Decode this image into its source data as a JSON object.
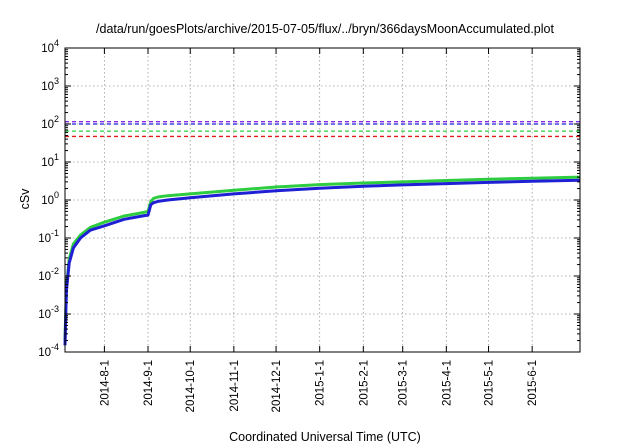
{
  "chart_data": {
    "type": "line",
    "title": "/data/run/goesPlots/archive/2015-07-05/flux/../bryn/366daysMoonAccumulated.plot",
    "xlabel": "Coordinated Universal Time (UTC)",
    "ylabel": "cSv",
    "y_scale": "log",
    "ylim": [
      0.0001,
      10000
    ],
    "xlim": [
      "2014-07-04",
      "2015-07-05"
    ],
    "grid": true,
    "legend": "none",
    "x_tick_labels": [
      "2014-8-1",
      "2014-9-1",
      "2014-10-1",
      "2014-11-1",
      "2014-12-1",
      "2015-1-1",
      "2015-2-1",
      "2015-3-1",
      "2015-4-1",
      "2015-5-1",
      "2015-6-1"
    ],
    "y_tick_labels": [
      {
        "base": "10",
        "exp": "-4"
      },
      {
        "base": "10",
        "exp": "-3"
      },
      {
        "base": "10",
        "exp": "-2"
      },
      {
        "base": "10",
        "exp": "-1"
      },
      {
        "base": "10",
        "exp": "0"
      },
      {
        "base": "10",
        "exp": "1"
      },
      {
        "base": "10",
        "exp": "2"
      },
      {
        "base": "10",
        "exp": "3"
      },
      {
        "base": "10",
        "exp": "4"
      }
    ],
    "thresholds": [
      {
        "value": 115,
        "color": "#8a2be2",
        "style": "dashed"
      },
      {
        "value": 100,
        "color": "#1f1fd6",
        "style": "dashed"
      },
      {
        "value": 65,
        "color": "#2ecc40",
        "style": "dashed"
      },
      {
        "value": 47,
        "color": "#e01b1b",
        "style": "dashed"
      }
    ],
    "series": [
      {
        "color": "#2ecc40",
        "x": [
          "2014-07-04",
          "2014-07-05",
          "2014-07-07",
          "2014-07-10",
          "2014-07-15",
          "2014-07-22",
          "2014-08-01",
          "2014-08-15",
          "2014-08-30",
          "2014-09-01",
          "2014-09-03",
          "2014-09-05",
          "2014-09-08",
          "2014-09-15",
          "2014-10-01",
          "2014-11-01",
          "2014-12-01",
          "2015-01-01",
          "2015-02-01",
          "2015-03-01",
          "2015-04-01",
          "2015-05-01",
          "2015-06-01",
          "2015-07-05"
        ],
        "y": [
          0.0002,
          0.005,
          0.028,
          0.07,
          0.12,
          0.19,
          0.26,
          0.38,
          0.48,
          0.5,
          0.9,
          1.1,
          1.2,
          1.3,
          1.45,
          1.8,
          2.2,
          2.55,
          2.8,
          3.0,
          3.25,
          3.5,
          3.75,
          4.0
        ]
      },
      {
        "color": "#1f1fd6",
        "x": [
          "2014-07-04",
          "2014-07-05",
          "2014-07-07",
          "2014-07-10",
          "2014-07-15",
          "2014-07-22",
          "2014-08-01",
          "2014-08-15",
          "2014-08-30",
          "2014-09-01",
          "2014-09-03",
          "2014-09-05",
          "2014-09-08",
          "2014-09-15",
          "2014-10-01",
          "2014-11-01",
          "2014-12-01",
          "2015-01-01",
          "2015-02-01",
          "2015-03-01",
          "2015-04-01",
          "2015-05-01",
          "2015-06-01",
          "2015-07-05"
        ],
        "y": [
          0.00015,
          0.004,
          0.022,
          0.055,
          0.1,
          0.16,
          0.21,
          0.31,
          0.39,
          0.4,
          0.75,
          0.85,
          0.92,
          1.0,
          1.15,
          1.45,
          1.75,
          2.05,
          2.3,
          2.5,
          2.7,
          2.9,
          3.1,
          3.3
        ]
      }
    ]
  }
}
